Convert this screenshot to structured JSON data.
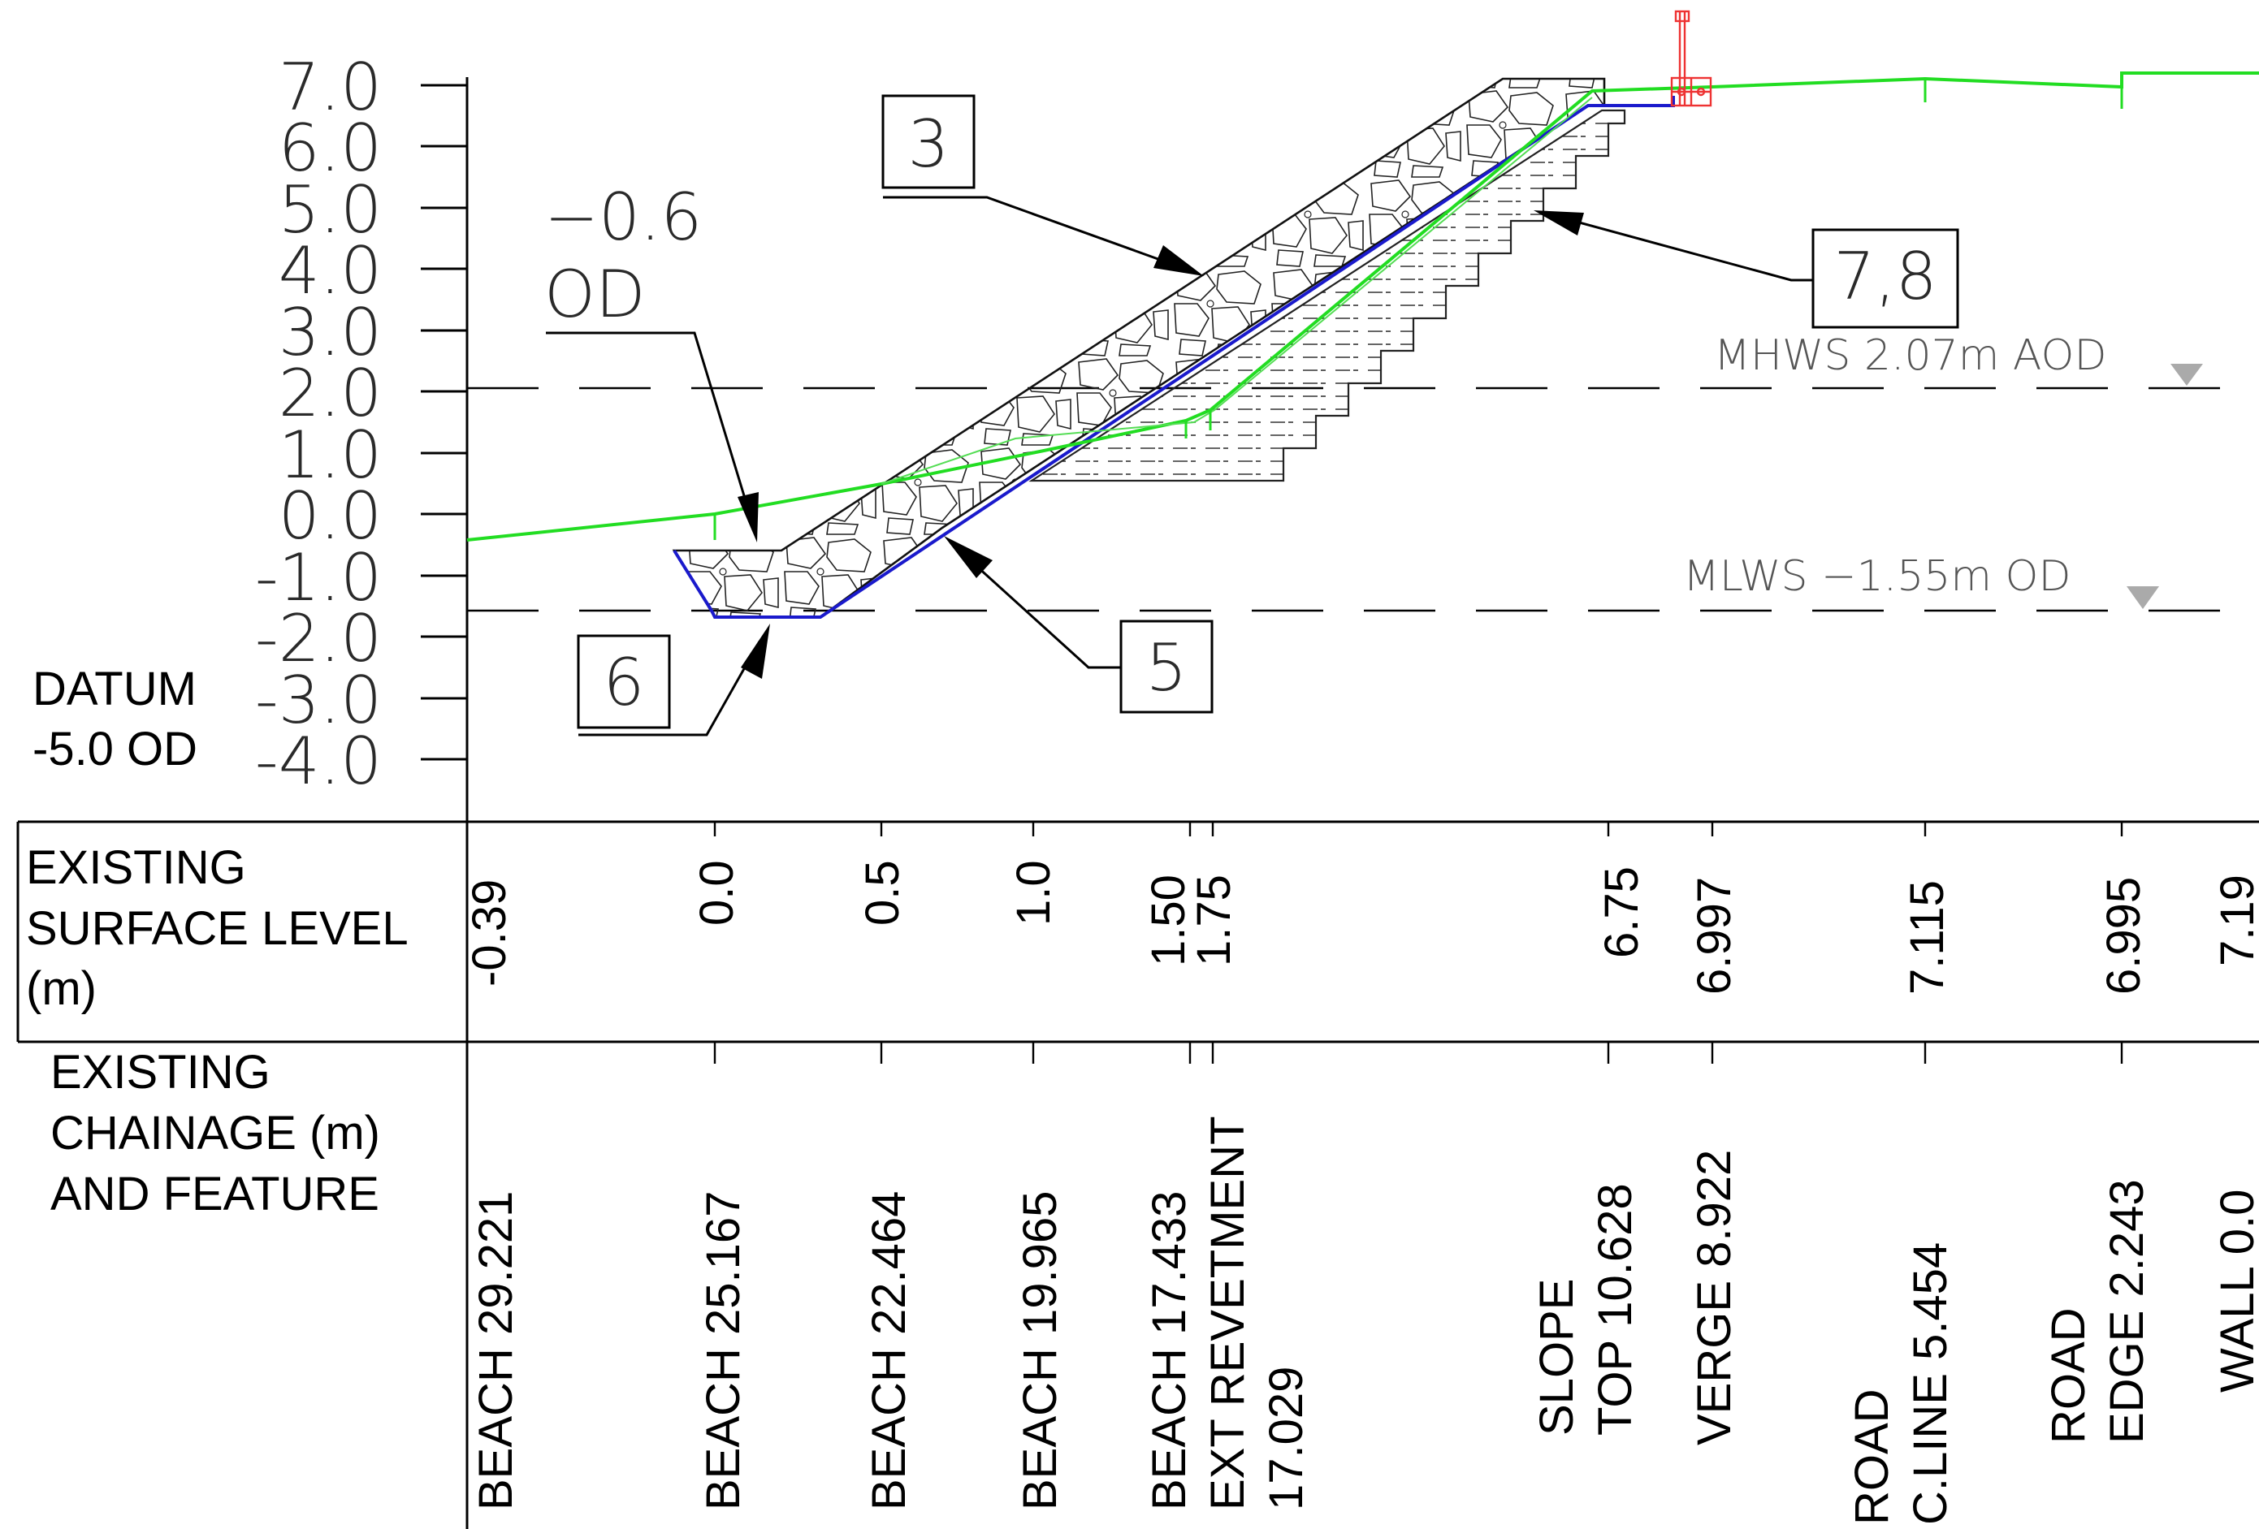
{
  "datum": {
    "line1": "DATUM",
    "line2": "-5.0 OD"
  },
  "axis_ticks": [
    "7.0",
    "6.0",
    "5.0",
    "4.0",
    "3.0",
    "2.0",
    "1.0",
    "0.0",
    "-1.0",
    "-2.0",
    "-3.0",
    "-4.0"
  ],
  "tide_levels": {
    "mhws": "MHWS  2.07m  AOD",
    "mlws": "MLWS  −1.55m  OD"
  },
  "toe_note": {
    "line1": "−0.6",
    "line2": "OD"
  },
  "callouts": {
    "c3": "3",
    "c78": "7,8",
    "c5": "5",
    "c6": "6"
  },
  "table": {
    "row1_header": [
      "EXISTING",
      "SURFACE LEVEL",
      "(m)"
    ],
    "row2_header": [
      "EXISTING",
      "CHAINAGE (m)",
      "AND FEATURE"
    ],
    "levels": [
      "-0.39",
      "0.0",
      "0.5",
      "1.0",
      "1.50",
      "1.75",
      "6.75",
      "6.997",
      "7.115",
      "6.995",
      "7.19"
    ],
    "features": {
      "f1": [
        "BEACH 29.221"
      ],
      "f2": [
        "BEACH 25.167"
      ],
      "f3": [
        "BEACH 22.464"
      ],
      "f4": [
        "BEACH 19.965"
      ],
      "f5": [
        "BEACH 17.433",
        "EXT REVETMENT",
        "17.029"
      ],
      "f6": [
        "SLOPE",
        "TOP 10.628"
      ],
      "f7": [
        "VERGE 8.922"
      ],
      "f8": [
        "ROAD",
        "C.LINE 5.454"
      ],
      "f9": [
        "ROAD",
        "EDGE 2.243"
      ],
      "f10": [
        "WALL 0.0"
      ]
    }
  },
  "colors": {
    "existing_ground": "#22dd22",
    "revetment_outline": "#1a1acc",
    "structure": "#ee3333",
    "line": "#000000"
  }
}
